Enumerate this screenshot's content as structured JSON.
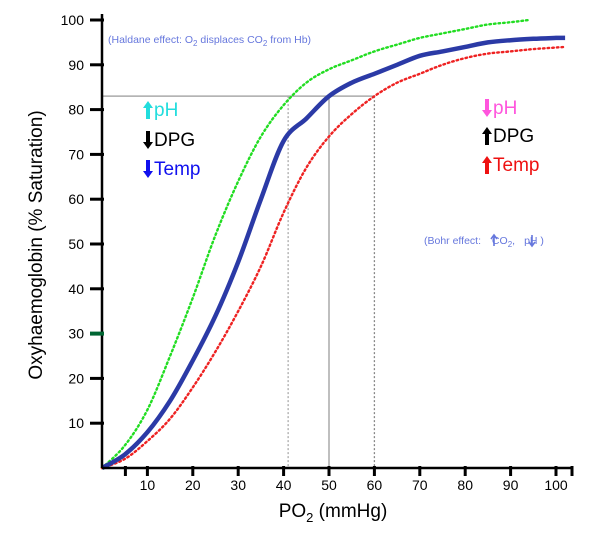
{
  "chart_data": {
    "type": "line",
    "xlabel": "PO",
    "xlabel_sub": "2",
    "xlabel_unit": " (mmHg)",
    "ylabel": "Oxyhaemoglobin (% Saturation)",
    "xlim": [
      0,
      102
    ],
    "ylim": [
      0,
      100
    ],
    "xticks": [
      10,
      20,
      30,
      40,
      50,
      60,
      70,
      80,
      90,
      100
    ],
    "yticks": [
      10,
      20,
      30,
      40,
      50,
      60,
      70,
      80,
      90,
      100
    ],
    "grid": false,
    "series": [
      {
        "name": "",
        "color": "#2b3aa6",
        "style": "solid",
        "x": [
          0,
          5,
          10,
          15,
          20,
          25,
          30,
          35,
          40,
          45,
          50,
          55,
          60,
          65,
          70,
          75,
          80,
          85,
          90,
          95,
          100,
          102
        ],
        "y": [
          0,
          3,
          8,
          15,
          24,
          34,
          46,
          60,
          73,
          78,
          83,
          86,
          88,
          90,
          92,
          93,
          94,
          95,
          95.5,
          95.8,
          96,
          96
        ]
      },
      {
        "name": "",
        "color": "#22dd22",
        "style": "dotted",
        "x": [
          0,
          5,
          10,
          15,
          20,
          25,
          30,
          35,
          40,
          45,
          50,
          55,
          60,
          65,
          70,
          75,
          80,
          85,
          90,
          94
        ],
        "y": [
          0,
          5,
          13,
          25,
          38,
          52,
          64,
          74,
          81,
          86,
          89,
          91,
          93,
          94.5,
          96,
          97,
          98,
          99,
          99.5,
          100
        ]
      },
      {
        "name": "",
        "color": "#ee2222",
        "style": "dotted",
        "x": [
          0,
          5,
          10,
          15,
          20,
          25,
          30,
          35,
          40,
          45,
          50,
          55,
          60,
          65,
          70,
          75,
          80,
          85,
          90,
          95,
          102
        ],
        "y": [
          0,
          2,
          6,
          11,
          18,
          26,
          35,
          45,
          57,
          67,
          74,
          79,
          83,
          86,
          88,
          90,
          91.5,
          92.5,
          93,
          93.5,
          94
        ]
      }
    ],
    "reference_lines": {
      "p50_level": 83,
      "p50_left_x": 41,
      "p50_normal_x": 50,
      "p50_right_x": 60
    },
    "left_shift": {
      "labels": [
        "pH",
        "DPG",
        "Temp"
      ],
      "arrows": [
        "up",
        "down",
        "down"
      ],
      "colors": [
        "#22dddd",
        "#000000",
        "#1111ee"
      ]
    },
    "right_shift": {
      "labels": [
        "pH",
        "DPG",
        "Temp"
      ],
      "arrows": [
        "down",
        "up",
        "up"
      ],
      "colors": [
        "#ff55dd",
        "#000000",
        "#ee1111"
      ]
    },
    "haldane": {
      "prefix": "(Haldane effect: O",
      "sub1": "2",
      "middle": " displaces CO",
      "sub2": "2",
      "suffix": " from Hb)"
    },
    "bohr": {
      "prefix": "(Bohr effect:",
      "co2": " CO",
      "sub": "2",
      "comma": ",",
      "ph": "pH )"
    },
    "colors": {
      "axis": "#000000",
      "annotation": "#6677dd",
      "reference": "#aaaaaa",
      "marker": "#006633"
    }
  }
}
